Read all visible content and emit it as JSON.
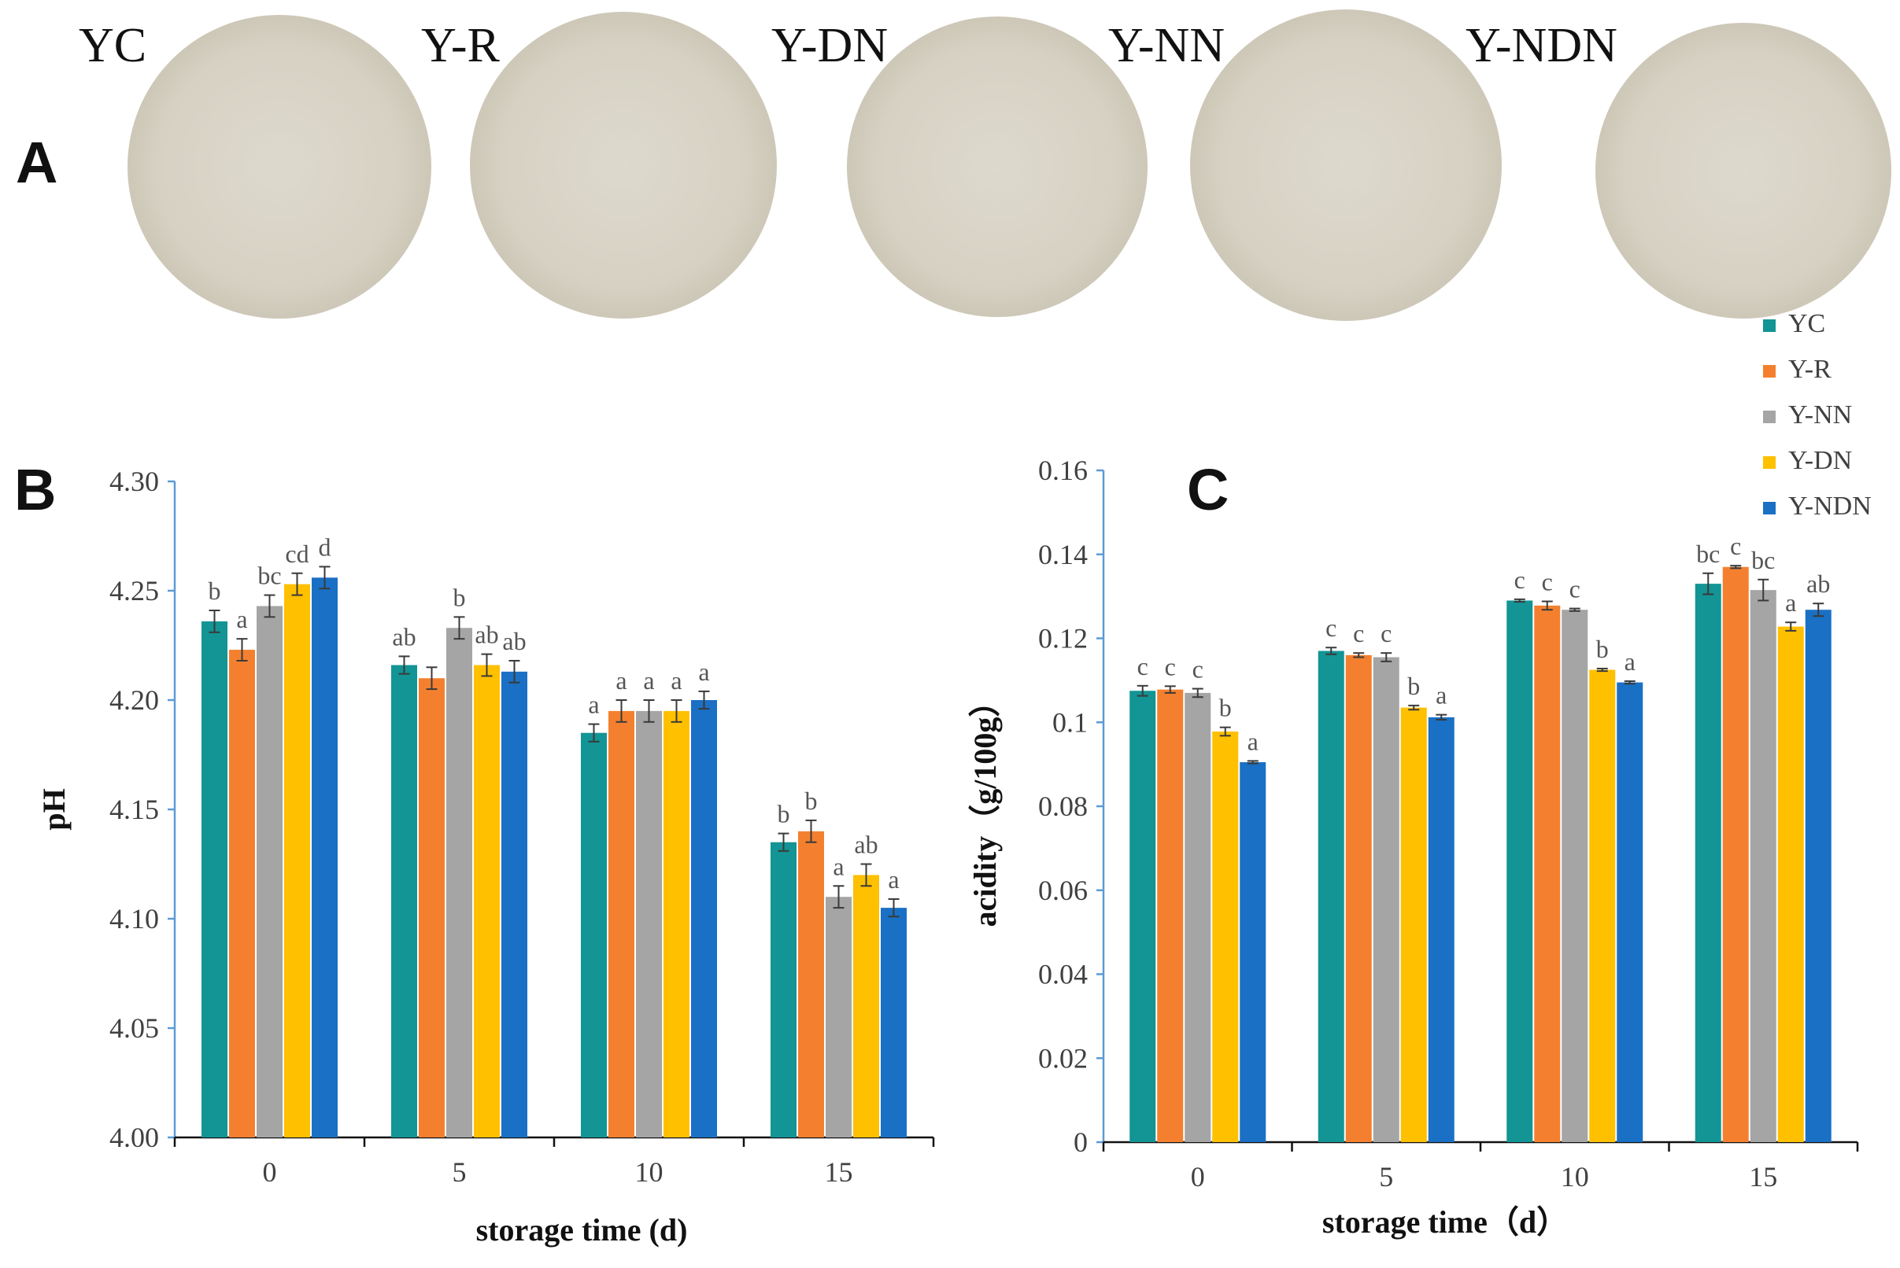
{
  "panels": {
    "a": {
      "letter": "A"
    },
    "b": {
      "letter": "B"
    },
    "c": {
      "letter": "C"
    }
  },
  "colors": {
    "YC": "#139495",
    "Y-R": "#f4802f",
    "Y-NN": "#a5a5a5",
    "Y-DN": "#ffc000",
    "Y-NDN": "#1a70c4",
    "axis": "#5b9bd5",
    "text": "#404040",
    "plate": "#dad6ca"
  },
  "samples": {
    "labels": [
      "YC",
      "Y-R",
      "Y-DN",
      "Y-NN",
      "Y-NDN"
    ]
  },
  "legend": {
    "entries": [
      "YC",
      "Y-R",
      "Y-NN",
      "Y-DN",
      "Y-NDN"
    ]
  },
  "chart_data": [
    {
      "id": "B",
      "type": "bar",
      "xlabel": "storage time (d)",
      "ylabel": "pH",
      "ylim": [
        4.0,
        4.3
      ],
      "yticks": [
        "4.00",
        "4.05",
        "4.10",
        "4.15",
        "4.20",
        "4.25",
        "4.30"
      ],
      "categories": [
        "0",
        "5",
        "10",
        "15"
      ],
      "series": [
        {
          "name": "YC",
          "values": [
            4.236,
            4.216,
            4.185,
            4.135
          ],
          "errors": [
            0.005,
            0.004,
            0.004,
            0.004
          ],
          "letters": [
            "b",
            "ab",
            "a",
            "b"
          ]
        },
        {
          "name": "Y-R",
          "values": [
            4.223,
            4.21,
            4.195,
            4.14
          ],
          "errors": [
            0.005,
            0.005,
            0.005,
            0.005
          ],
          "letters": [
            "a",
            "",
            "a",
            "b"
          ]
        },
        {
          "name": "Y-NN",
          "values": [
            4.243,
            4.233,
            4.195,
            4.11
          ],
          "errors": [
            0.005,
            0.005,
            0.005,
            0.005
          ],
          "letters": [
            "bc",
            "b",
            "a",
            "a"
          ]
        },
        {
          "name": "Y-DN",
          "values": [
            4.253,
            4.216,
            4.195,
            4.12
          ],
          "errors": [
            0.005,
            0.005,
            0.005,
            0.005
          ],
          "letters": [
            "cd",
            "ab",
            "a",
            "ab"
          ]
        },
        {
          "name": "Y-NDN",
          "values": [
            4.256,
            4.213,
            4.2,
            4.105
          ],
          "errors": [
            0.005,
            0.005,
            0.004,
            0.004
          ],
          "letters": [
            "d",
            "ab",
            "a",
            "a"
          ]
        }
      ]
    },
    {
      "id": "C",
      "type": "bar",
      "xlabel": "storage time（d）",
      "ylabel": "acidity（g/100g）",
      "ylim": [
        0,
        0.16
      ],
      "yticks": [
        "0",
        "0.02",
        "0.04",
        "0.06",
        "0.08",
        "0.1",
        "0.12",
        "0.14",
        "0.16"
      ],
      "categories": [
        "0",
        "5",
        "10",
        "15"
      ],
      "series": [
        {
          "name": "YC",
          "values": [
            0.1075,
            0.117,
            0.129,
            0.133
          ],
          "errors": [
            0.0012,
            0.0008,
            0.0003,
            0.0025
          ],
          "letters": [
            "c",
            "c",
            "c",
            "bc"
          ]
        },
        {
          "name": "Y-R",
          "values": [
            0.1078,
            0.116,
            0.1278,
            0.137
          ],
          "errors": [
            0.0008,
            0.0005,
            0.001,
            0.0003
          ],
          "letters": [
            "c",
            "c",
            "c",
            "c"
          ]
        },
        {
          "name": "Y-NN",
          "values": [
            0.107,
            0.1155,
            0.1268,
            0.1315
          ],
          "errors": [
            0.001,
            0.001,
            0.0003,
            0.0025
          ],
          "letters": [
            "c",
            "c",
            "c",
            "bc"
          ]
        },
        {
          "name": "Y-DN",
          "values": [
            0.0978,
            0.1035,
            0.1125,
            0.1228
          ],
          "errors": [
            0.001,
            0.0005,
            0.0003,
            0.001
          ],
          "letters": [
            "b",
            "b",
            "b",
            "a"
          ]
        },
        {
          "name": "Y-NDN",
          "values": [
            0.0905,
            0.1012,
            0.1095,
            0.1268
          ],
          "errors": [
            0.0003,
            0.0006,
            0.0003,
            0.0015
          ],
          "letters": [
            "a",
            "a",
            "a",
            "ab"
          ]
        }
      ]
    }
  ]
}
